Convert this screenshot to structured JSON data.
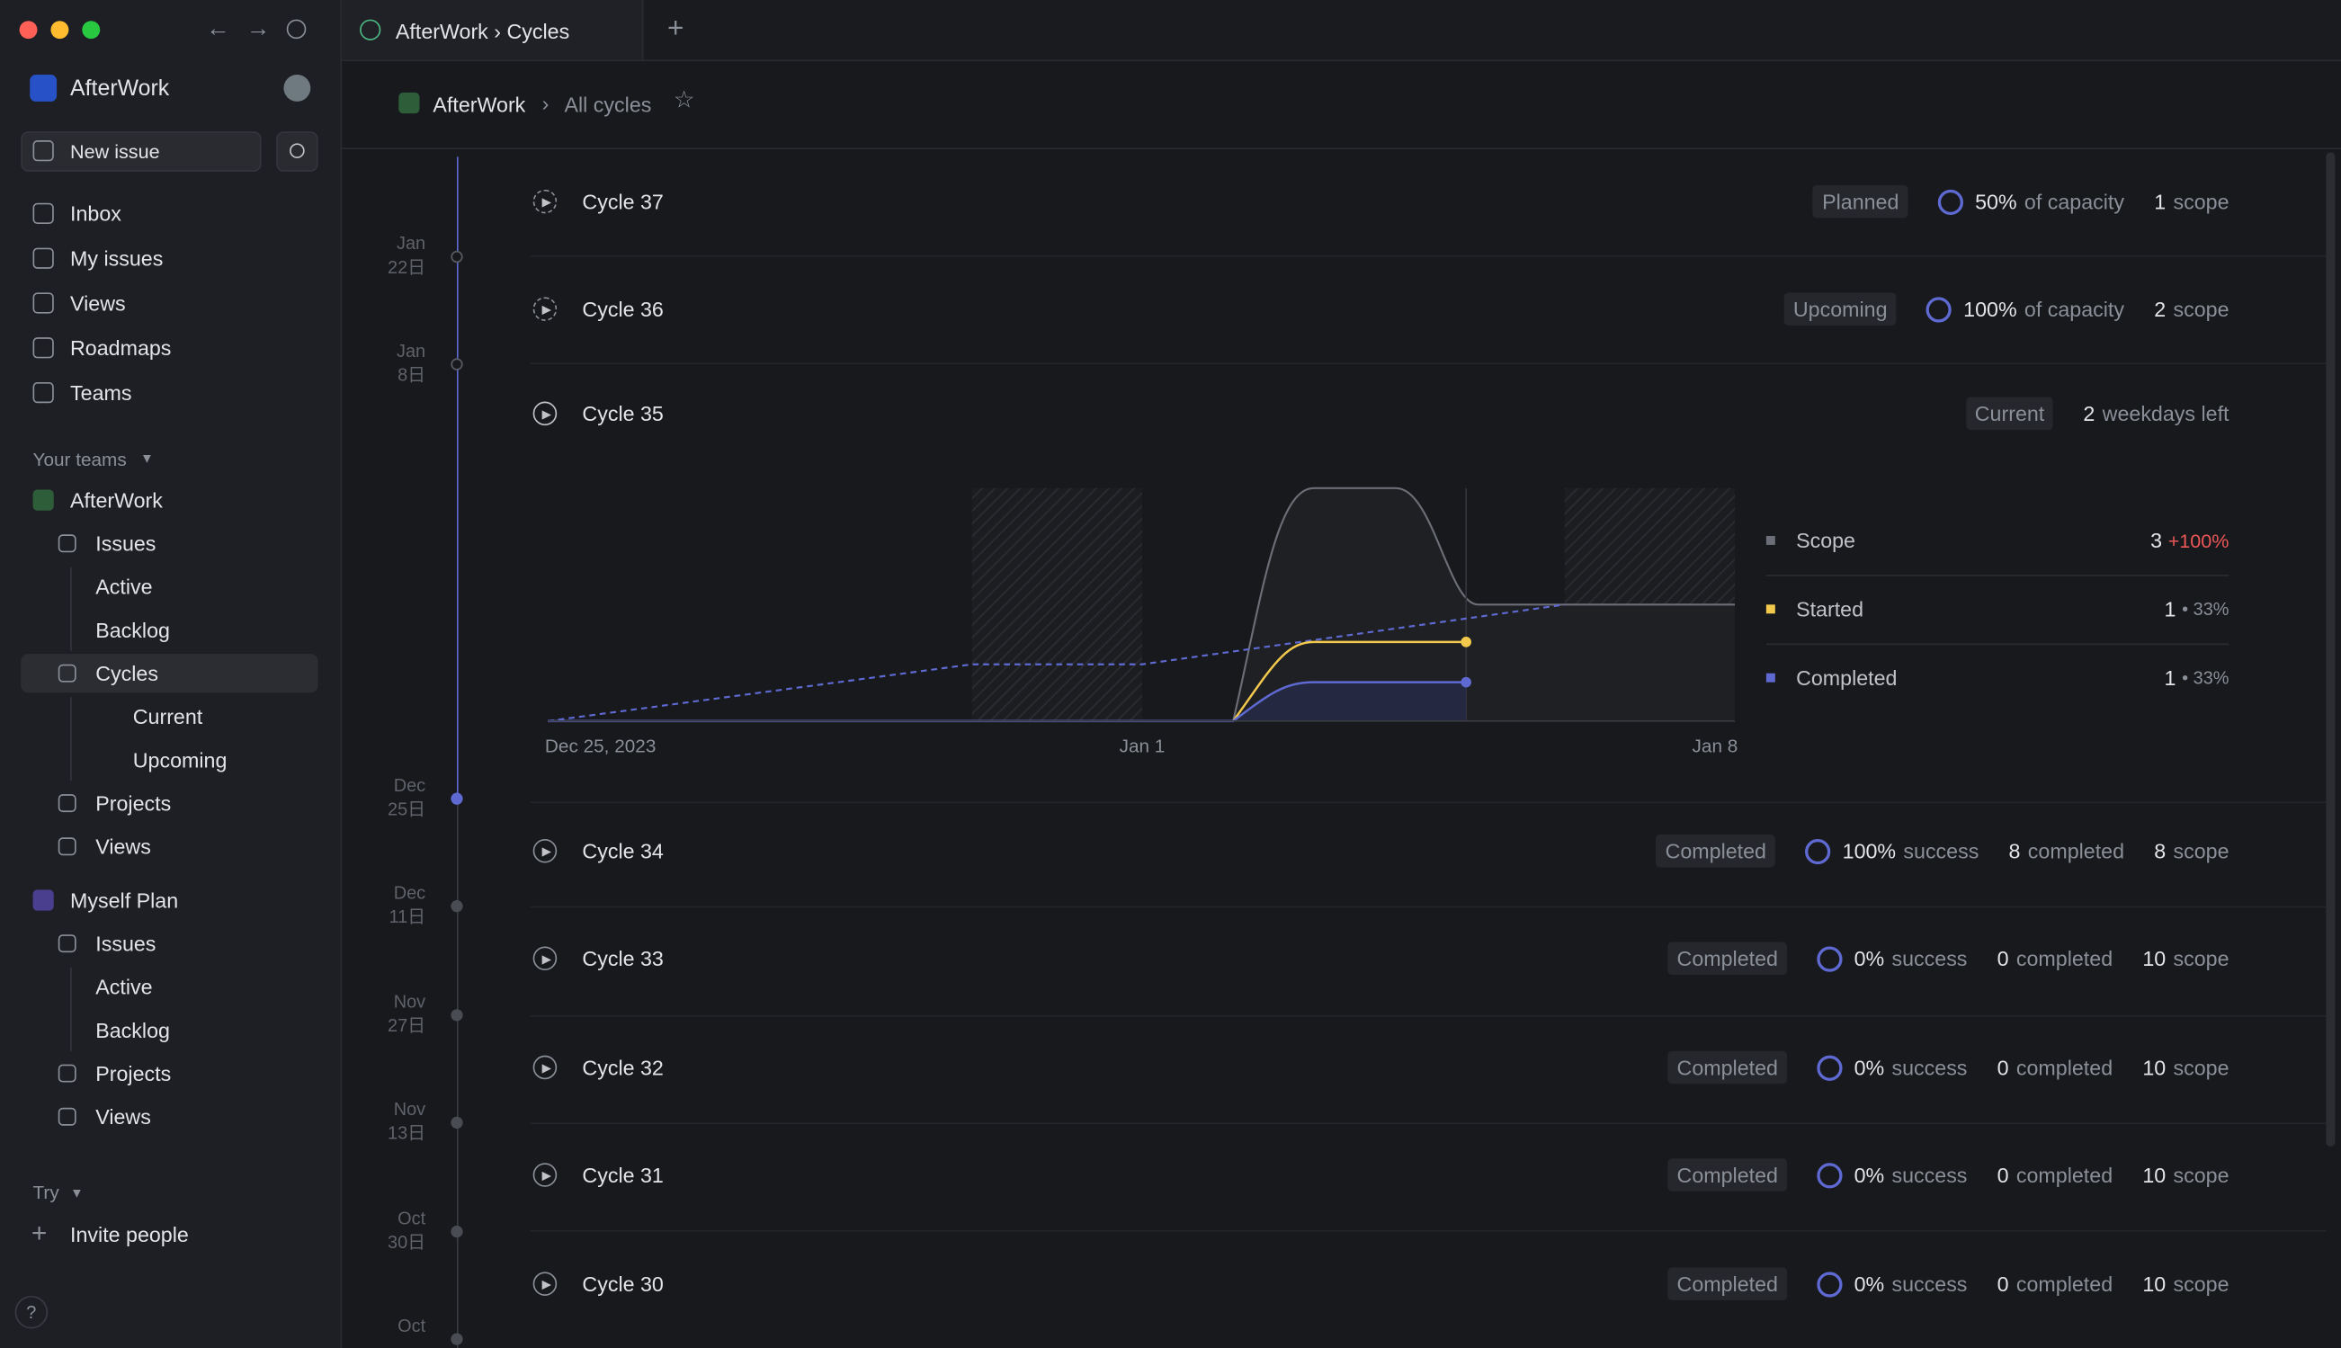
{
  "tab": {
    "title": "AfterWork › Cycles",
    "new_tab": "+"
  },
  "sidebar": {
    "workspace": "AfterWork",
    "new_issue": "New issue",
    "nav": [
      "Inbox",
      "My issues",
      "Views",
      "Roadmaps",
      "Teams"
    ],
    "your_teams": "Your teams",
    "teams": [
      {
        "name": "AfterWork",
        "items": [
          "Issues",
          "Active",
          "Backlog",
          "Cycles",
          "Current",
          "Upcoming",
          "Projects",
          "Views"
        ]
      },
      {
        "name": "Myself Plan",
        "items": [
          "Issues",
          "Active",
          "Backlog",
          "Projects",
          "Views"
        ]
      }
    ],
    "try": "Try",
    "invite": "Invite people",
    "help": "?"
  },
  "breadcrumb": {
    "team": "AfterWork",
    "separator": "›",
    "page": "All cycles"
  },
  "timeline": [
    {
      "month": "Jan",
      "day": "22日"
    },
    {
      "month": "Jan",
      "day": "8日"
    },
    {
      "month": "Dec",
      "day": "25日"
    },
    {
      "month": "Dec",
      "day": "11日"
    },
    {
      "month": "Nov",
      "day": "27日"
    },
    {
      "month": "Nov",
      "day": "13日"
    },
    {
      "month": "Oct",
      "day": "30日"
    },
    {
      "month": "Oct"
    }
  ],
  "cycles": [
    {
      "name": "Cycle 37",
      "status": "Planned",
      "progress": {
        "value": "50%",
        "label": "of capacity"
      },
      "counts": [
        {
          "value": "1",
          "label": "scope"
        }
      ]
    },
    {
      "name": "Cycle 36",
      "status": "Upcoming",
      "progress": {
        "value": "100%",
        "label": "of capacity"
      },
      "counts": [
        {
          "value": "2",
          "label": "scope"
        }
      ]
    },
    {
      "name": "Cycle 35",
      "status": "Current",
      "counts": [
        {
          "value": "2",
          "label": "weekdays left"
        }
      ]
    },
    {
      "name": "Cycle 34",
      "status": "Completed",
      "progress": {
        "value": "100%",
        "label": "success"
      },
      "counts": [
        {
          "value": "8",
          "label": "completed"
        },
        {
          "value": "8",
          "label": "scope"
        }
      ]
    },
    {
      "name": "Cycle 33",
      "status": "Completed",
      "progress": {
        "value": "0%",
        "label": "success"
      },
      "counts": [
        {
          "value": "0",
          "label": "completed"
        },
        {
          "value": "10",
          "label": "scope"
        }
      ]
    },
    {
      "name": "Cycle 32",
      "status": "Completed",
      "progress": {
        "value": "0%",
        "label": "success"
      },
      "counts": [
        {
          "value": "0",
          "label": "completed"
        },
        {
          "value": "10",
          "label": "scope"
        }
      ]
    },
    {
      "name": "Cycle 31",
      "status": "Completed",
      "progress": {
        "value": "0%",
        "label": "success"
      },
      "counts": [
        {
          "value": "0",
          "label": "completed"
        },
        {
          "value": "10",
          "label": "scope"
        }
      ]
    },
    {
      "name": "Cycle 30",
      "status": "Completed",
      "progress": {
        "value": "0%",
        "label": "success"
      },
      "counts": [
        {
          "value": "0",
          "label": "completed"
        },
        {
          "value": "10",
          "label": "scope"
        }
      ]
    }
  ],
  "current_chart": {
    "x_labels": [
      "Dec 25, 2023",
      "Jan 1",
      "Jan 8"
    ],
    "legend": [
      {
        "name": "Scope",
        "value": "3",
        "change": "+100%"
      },
      {
        "name": "Started",
        "value": "1",
        "change": "• 33%"
      },
      {
        "name": "Completed",
        "value": "1",
        "change": "• 33%"
      }
    ]
  }
}
